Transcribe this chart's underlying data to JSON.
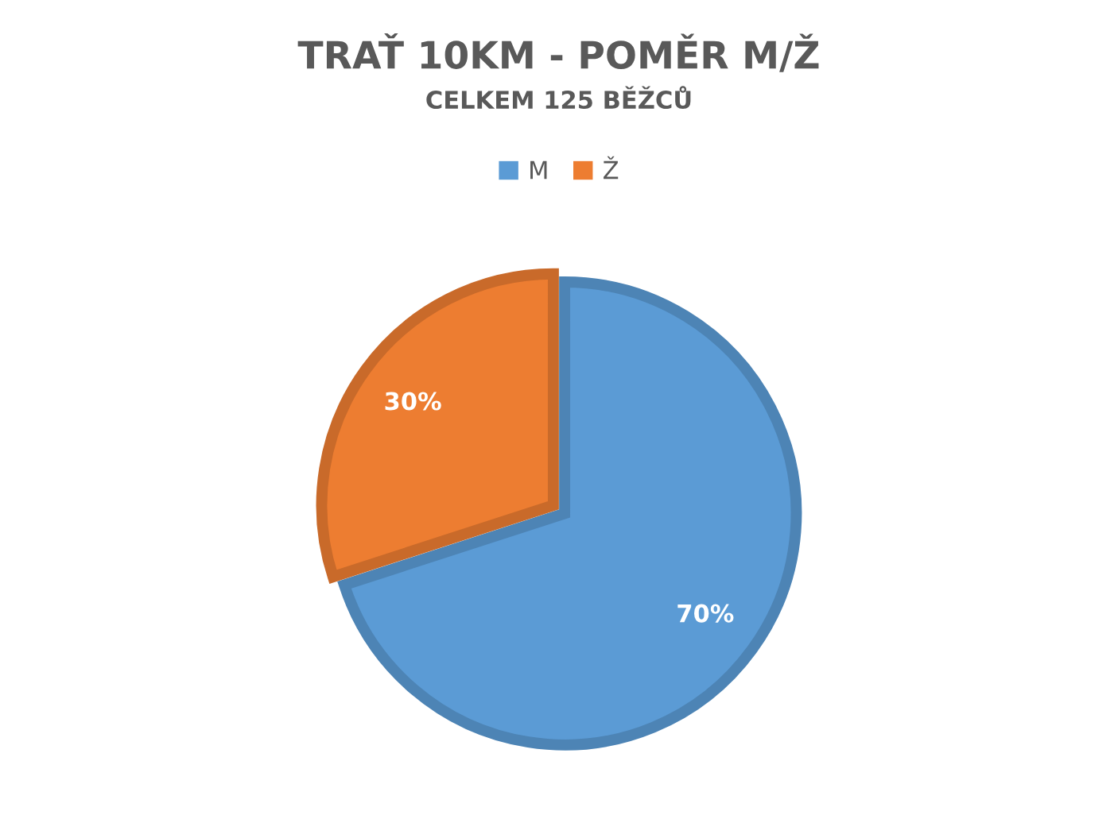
{
  "chart_data": {
    "type": "pie",
    "title": "TRAŤ 10KM - POMĚR M/Ž",
    "subtitle": "CELKEM 125 BĚŽCŮ",
    "categories": [
      "M",
      "Ž"
    ],
    "values": [
      70,
      30
    ],
    "colors": [
      "#5b9bd5",
      "#ed7d31"
    ],
    "value_labels": [
      "70%",
      "30%"
    ],
    "legend": "top"
  }
}
